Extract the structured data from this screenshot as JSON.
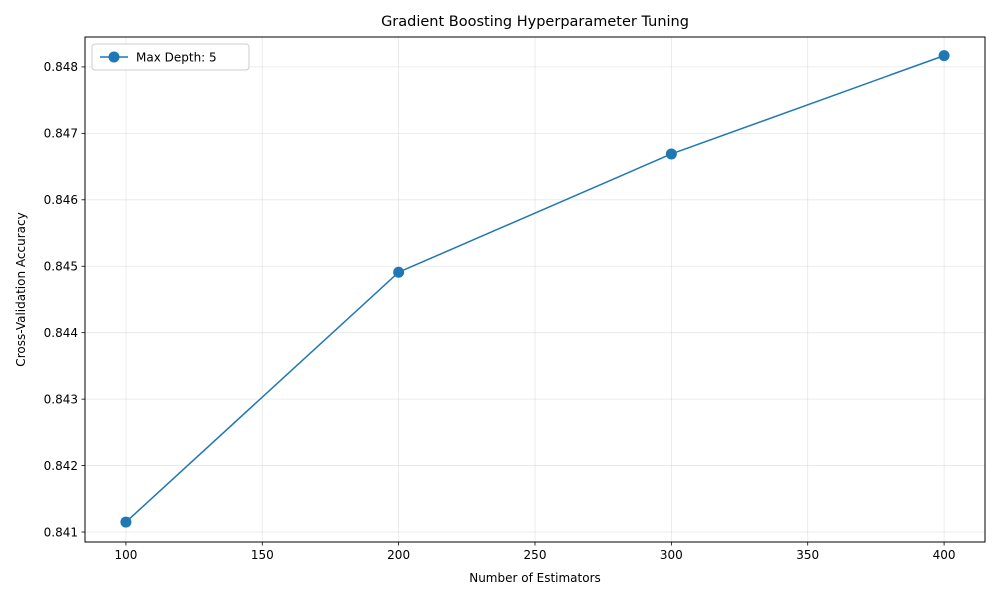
{
  "chart_data": {
    "type": "line",
    "title": "Gradient Boosting Hyperparameter Tuning",
    "xlabel": "Number of Estimators",
    "ylabel": "Cross-Validation Accuracy",
    "xlim": [
      85,
      415
    ],
    "ylim": [
      0.84085,
      0.84845
    ],
    "x_ticks": [
      100,
      150,
      200,
      250,
      300,
      350,
      400
    ],
    "y_ticks": [
      0.841,
      0.842,
      0.843,
      0.844,
      0.845,
      0.846,
      0.847,
      0.848
    ],
    "x_tick_labels": [
      "100",
      "150",
      "200",
      "250",
      "300",
      "350",
      "400"
    ],
    "y_tick_labels": [
      "0.841",
      "0.842",
      "0.843",
      "0.844",
      "0.845",
      "0.846",
      "0.847",
      "0.848"
    ],
    "grid": true,
    "legend_position": "top-left",
    "series": [
      {
        "name": "Max Depth: 5",
        "color": "#1f77b4",
        "marker": "circle",
        "x": [
          100,
          200,
          300,
          400
        ],
        "y": [
          0.84115,
          0.84491,
          0.84669,
          0.84817
        ]
      }
    ]
  }
}
